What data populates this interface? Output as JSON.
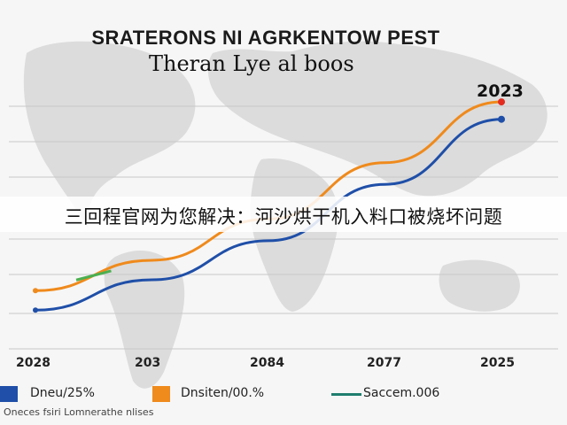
{
  "chart_data": {
    "type": "line",
    "title": "SRATERONS NI AGRKENTOW PEST",
    "subtitle": "Theran Lye al boos",
    "x_tick_labels": [
      "2028",
      "203",
      "2084",
      "2077",
      "2025"
    ],
    "x": [
      0,
      1,
      2,
      3,
      4
    ],
    "ylim": [
      0,
      10
    ],
    "grid": true,
    "end_label": "2023",
    "series": [
      {
        "name": "Dneu/25%",
        "color": "#1f4fa8",
        "values": [
          0.6,
          2.0,
          3.8,
          6.4,
          9.4
        ]
      },
      {
        "name": "Dnsiten/00.%",
        "color": "#ef8a1c",
        "values": [
          1.5,
          2.9,
          4.8,
          7.4,
          10.2
        ]
      }
    ],
    "extra_legend": {
      "name": "Saccem.006",
      "color": "#1e7d6e"
    },
    "legend_position": "bottom"
  },
  "overlay": {
    "banner_text": "三回程官网为您解决：河沙烘干机入料口被烧坏问题"
  },
  "footer": {
    "text": "Oneces fsiri Lomnerathe nlises"
  }
}
